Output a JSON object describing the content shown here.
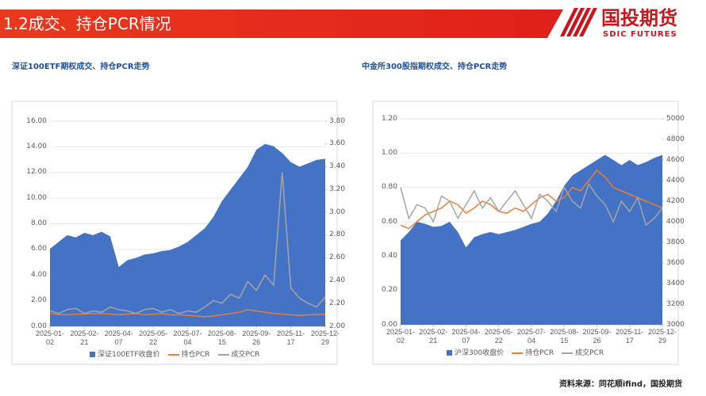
{
  "header": {
    "title": "1.2成交、持仓PCR情况",
    "logo_text": "国投期货",
    "logo_sub": "SDIC FUTURES"
  },
  "chart_data": [
    {
      "type": "combo",
      "title": "深证100ETF期权成交、持仓PCR走势",
      "categories": [
        "2025-01-02",
        null,
        null,
        null,
        "2025-02-21",
        null,
        null,
        null,
        "2025-04-07",
        null,
        null,
        null,
        "2025-05-22",
        null,
        null,
        null,
        "2025-07-04",
        null,
        null,
        null,
        "2025-08-15",
        null,
        null,
        null,
        "2025-09-26",
        null,
        null,
        null,
        "2025-11-17",
        null,
        null,
        null,
        "2025-12-29"
      ],
      "series": [
        {
          "name": "深证100ETF收盘价",
          "type": "area",
          "axis": "y2",
          "color": "#4472c4",
          "values": [
            2.68,
            2.74,
            2.8,
            2.78,
            2.82,
            2.8,
            2.83,
            2.79,
            2.52,
            2.58,
            2.6,
            2.63,
            2.64,
            2.66,
            2.67,
            2.7,
            2.74,
            2.8,
            2.86,
            2.96,
            3.1,
            3.2,
            3.3,
            3.4,
            3.55,
            3.6,
            3.58,
            3.52,
            3.44,
            3.4,
            3.43,
            3.46,
            3.47
          ]
        },
        {
          "name": "持仓PCR",
          "type": "line",
          "color": "#ed7d31",
          "values": [
            1.0,
            0.9,
            0.9,
            0.95,
            0.95,
            1.0,
            1.0,
            0.95,
            0.9,
            0.95,
            1.0,
            0.9,
            0.95,
            1.0,
            0.9,
            0.9,
            0.85,
            0.8,
            0.75,
            0.8,
            0.9,
            1.0,
            1.1,
            1.3,
            1.2,
            1.1,
            1.0,
            0.95,
            0.9,
            0.85,
            0.9,
            0.9,
            0.95
          ]
        },
        {
          "name": "成交PCR",
          "type": "line",
          "color": "#a5a5a5",
          "values": [
            1.2,
            1.0,
            1.3,
            1.4,
            1.0,
            1.2,
            1.1,
            1.5,
            1.3,
            1.2,
            1.0,
            1.3,
            1.4,
            1.1,
            1.3,
            1.0,
            1.2,
            1.1,
            1.5,
            2.0,
            1.8,
            2.5,
            2.2,
            3.5,
            2.8,
            4.0,
            3.2,
            12.0,
            3.0,
            2.2,
            1.8,
            1.5,
            2.3
          ]
        }
      ],
      "ylim": [
        0,
        16
      ],
      "yticks": [
        {
          "value": 0,
          "label": "0.00"
        },
        {
          "value": 2,
          "label": "2.00"
        },
        {
          "value": 4,
          "label": "4.00"
        },
        {
          "value": 6,
          "label": "6.00"
        },
        {
          "value": 8,
          "label": "8.00"
        },
        {
          "value": 10,
          "label": "10.00"
        },
        {
          "value": 12,
          "label": "12.00"
        },
        {
          "value": 14,
          "label": "14.00"
        },
        {
          "value": 16,
          "label": "16.00"
        }
      ],
      "y2lim": [
        2,
        3.8
      ],
      "y2ticks": [
        {
          "value": 2,
          "label": "2.00"
        },
        {
          "value": 2.2,
          "label": "2.20"
        },
        {
          "value": 2.4,
          "label": "2.40"
        },
        {
          "value": 2.6,
          "label": "2.60"
        },
        {
          "value": 2.8,
          "label": "2.80"
        },
        {
          "value": 3,
          "label": "3.00"
        },
        {
          "value": 3.2,
          "label": "3.20"
        },
        {
          "value": 3.4,
          "label": "3.40"
        },
        {
          "value": 3.6,
          "label": "3.60"
        },
        {
          "value": 3.8,
          "label": "3.80"
        }
      ],
      "grid": true,
      "legend": "bottom"
    },
    {
      "type": "combo",
      "title": "中金所300股指期权成交、持仓PCR走势",
      "categories": [
        "2025-01-02",
        null,
        null,
        null,
        "2025-02-21",
        null,
        null,
        null,
        "2025-04-07",
        null,
        null,
        null,
        "2025-05-22",
        null,
        null,
        null,
        "2025-07-04",
        null,
        null,
        null,
        "2025-08-15",
        null,
        null,
        null,
        "2025-09-26",
        null,
        null,
        null,
        "2025-11-17",
        null,
        null,
        null,
        "2025-12-29"
      ],
      "series": [
        {
          "name": "沪深300收盘价",
          "type": "area",
          "axis": "y2",
          "color": "#4472c4",
          "values": [
            3820,
            3900,
            4000,
            3980,
            3950,
            3960,
            4000,
            3900,
            3750,
            3850,
            3880,
            3900,
            3880,
            3900,
            3920,
            3950,
            3980,
            4000,
            4080,
            4200,
            4350,
            4450,
            4500,
            4550,
            4600,
            4650,
            4600,
            4550,
            4600,
            4550,
            4580,
            4620,
            4650
          ]
        },
        {
          "name": "持仓PCR",
          "type": "line",
          "color": "#ed7d31",
          "values": [
            0.58,
            0.56,
            0.6,
            0.64,
            0.66,
            0.68,
            0.72,
            0.7,
            0.65,
            0.68,
            0.72,
            0.7,
            0.66,
            0.65,
            0.68,
            0.66,
            0.7,
            0.74,
            0.76,
            0.72,
            0.74,
            0.8,
            0.78,
            0.84,
            0.9,
            0.86,
            0.8,
            0.78,
            0.76,
            0.74,
            0.72,
            0.7,
            0.68
          ]
        },
        {
          "name": "成交PCR",
          "type": "line",
          "color": "#a5a5a5",
          "values": [
            0.8,
            0.62,
            0.7,
            0.68,
            0.6,
            0.75,
            0.72,
            0.62,
            0.7,
            0.78,
            0.68,
            0.74,
            0.66,
            0.72,
            0.78,
            0.7,
            0.62,
            0.76,
            0.72,
            0.66,
            0.8,
            0.72,
            0.68,
            0.82,
            0.75,
            0.7,
            0.6,
            0.72,
            0.66,
            0.74,
            0.58,
            0.62,
            0.68
          ]
        }
      ],
      "ylim": [
        0,
        1.2
      ],
      "yticks": [
        {
          "value": 0,
          "label": "0.00"
        },
        {
          "value": 0.2,
          "label": "0.20"
        },
        {
          "value": 0.4,
          "label": "0.40"
        },
        {
          "value": 0.6,
          "label": "0.60"
        },
        {
          "value": 0.8,
          "label": "0.80"
        },
        {
          "value": 1,
          "label": "1.00"
        },
        {
          "value": 1.2,
          "label": "1.20"
        }
      ],
      "y2lim": [
        3000,
        5000
      ],
      "y2ticks": [
        3000,
        3200,
        3400,
        3600,
        3800,
        4000,
        4200,
        4400,
        4600,
        4800,
        5000
      ],
      "grid": true,
      "legend": "bottom"
    }
  ],
  "footer": {
    "source": "资料来源：同花顺ifind，国投期货"
  }
}
